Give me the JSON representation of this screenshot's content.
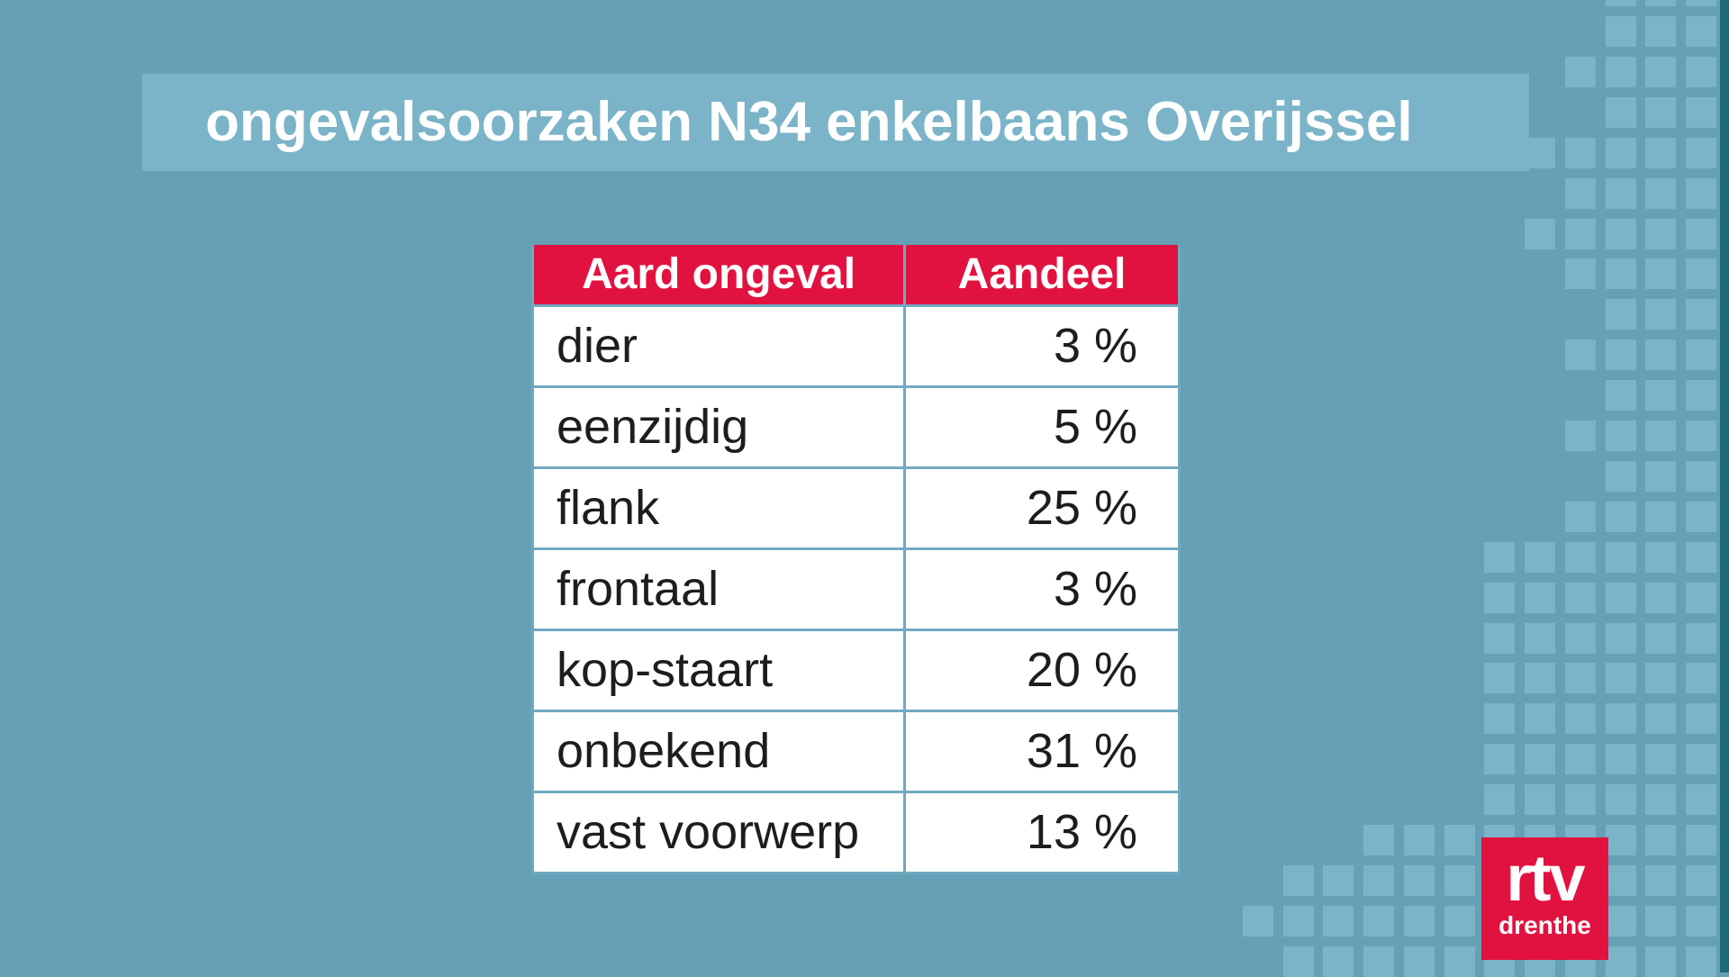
{
  "title": "ongevalsoorzaken N34 enkelbaans Overijssel",
  "table": {
    "headers": [
      "Aard ongeval",
      "Aandeel"
    ],
    "rows": [
      {
        "cause": "dier",
        "share": "3 %"
      },
      {
        "cause": "eenzijdig",
        "share": "5 %"
      },
      {
        "cause": "flank",
        "share": "25 %"
      },
      {
        "cause": "frontaal",
        "share": "3 %"
      },
      {
        "cause": "kop-staart",
        "share": "20 %"
      },
      {
        "cause": "onbekend",
        "share": "31 %"
      },
      {
        "cause": "vast voorwerp",
        "share": "13 %"
      }
    ]
  },
  "logo": {
    "line1": "rtv",
    "line2": "drenthe"
  },
  "colors": {
    "background": "#65a0b6",
    "tile": "#7bb4c8",
    "brand_red": "#e21240",
    "edge_dark": "#1e6a7a",
    "table_border": "#6fa9c2",
    "text_dark": "#1d1d1b",
    "text_light": "#ffffff"
  },
  "chart_data": {
    "type": "table",
    "title": "ongevalsoorzaken N34 enkelbaans Overijssel",
    "columns": [
      "Aard ongeval",
      "Aandeel"
    ],
    "categories": [
      "dier",
      "eenzijdig",
      "flank",
      "frontaal",
      "kop-staart",
      "onbekend",
      "vast voorwerp"
    ],
    "values_pct": [
      3,
      5,
      25,
      3,
      20,
      31,
      13
    ],
    "unit": "%"
  }
}
